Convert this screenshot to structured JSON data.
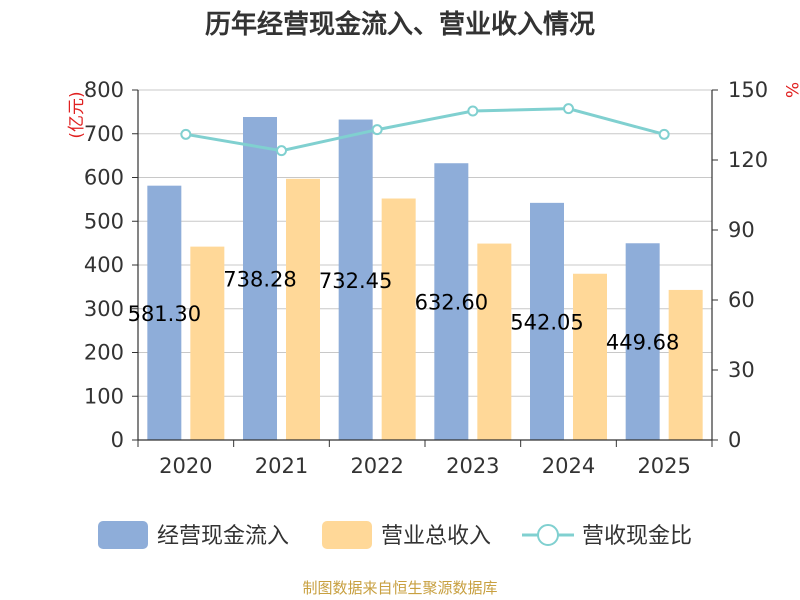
{
  "chart_data": {
    "type": "bar",
    "title": "历年经营现金流入、营业收入情况",
    "categories": [
      "2020",
      "2021",
      "2022",
      "2023",
      "2024",
      "2025"
    ],
    "series": [
      {
        "name": "经营现金流入",
        "kind": "bar",
        "axis": "left",
        "color": "#8eadd9",
        "values": [
          581.3,
          738.28,
          732.45,
          632.6,
          542.05,
          449.68
        ]
      },
      {
        "name": "营业总收入",
        "kind": "bar",
        "axis": "left",
        "color": "#ffd898",
        "values": [
          442,
          597,
          552,
          449,
          380,
          343
        ]
      },
      {
        "name": "营收现金比",
        "kind": "line",
        "axis": "right",
        "color": "#80d0d0",
        "values": [
          131,
          124,
          133,
          141,
          142,
          131
        ]
      }
    ],
    "data_labels": [
      "581.30",
      "738.28",
      "732.45",
      "632.60",
      "542.05",
      "449.68"
    ],
    "y_left": {
      "label": "(亿元)",
      "min": 0,
      "max": 800,
      "ticks": [
        0,
        100,
        200,
        300,
        400,
        500,
        600,
        700,
        800
      ]
    },
    "y_right": {
      "label": "%",
      "min": 0,
      "max": 150,
      "ticks": [
        0,
        30,
        60,
        90,
        120,
        150
      ]
    },
    "grid": true,
    "legend_position": "bottom",
    "source": "制图数据来自恒生聚源数据库"
  }
}
